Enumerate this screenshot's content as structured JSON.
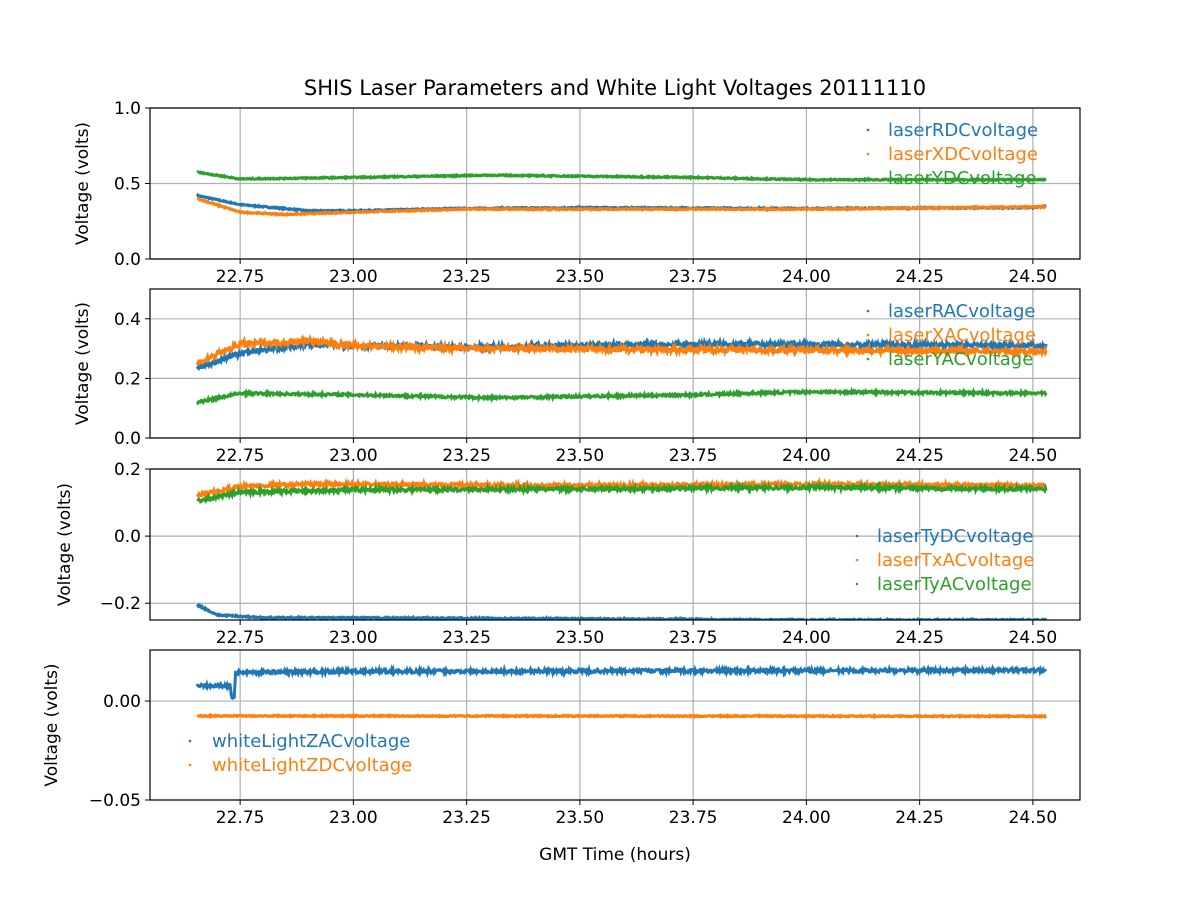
{
  "chart_data": [
    {
      "type": "scatter",
      "title": "SHIS Laser Parameters and White Light Voltages 20111110",
      "ylabel": "Voltage (volts)",
      "xlim": [
        22.551,
        24.604
      ],
      "ylim": [
        0.0,
        1.0
      ],
      "xticks": [
        "22.75",
        "23.00",
        "23.25",
        "23.50",
        "23.75",
        "24.00",
        "24.25",
        "24.50"
      ],
      "yticks": [
        "0.0",
        "0.5",
        "1.0"
      ],
      "grid": true,
      "legend": "top-right",
      "series": [
        {
          "name": "laserRDCvoltage",
          "color": "#1f77b4",
          "noise": 0.004,
          "points": [
            [
              22.655,
              0.42
            ],
            [
              22.75,
              0.36
            ],
            [
              22.9,
              0.32
            ],
            [
              23.0,
              0.32
            ],
            [
              23.25,
              0.335
            ],
            [
              23.5,
              0.34
            ],
            [
              24.0,
              0.335
            ],
            [
              24.5,
              0.34
            ],
            [
              24.53,
              0.35
            ]
          ]
        },
        {
          "name": "laserXDCvoltage",
          "color": "#ff7f0e",
          "noise": 0.004,
          "points": [
            [
              22.655,
              0.4
            ],
            [
              22.75,
              0.31
            ],
            [
              22.85,
              0.295
            ],
            [
              23.0,
              0.31
            ],
            [
              23.25,
              0.33
            ],
            [
              24.0,
              0.33
            ],
            [
              24.53,
              0.345
            ]
          ]
        },
        {
          "name": "laserYDCvoltage",
          "color": "#2ca02c",
          "noise": 0.004,
          "points": [
            [
              22.655,
              0.575
            ],
            [
              22.75,
              0.53
            ],
            [
              23.0,
              0.54
            ],
            [
              23.3,
              0.555
            ],
            [
              23.75,
              0.54
            ],
            [
              24.0,
              0.525
            ],
            [
              24.53,
              0.525
            ]
          ]
        }
      ]
    },
    {
      "type": "scatter",
      "ylabel": "Voltage (volts)",
      "xlim": [
        22.551,
        24.604
      ],
      "ylim": [
        0.0,
        0.5
      ],
      "xticks": [
        "22.75",
        "23.00",
        "23.25",
        "23.50",
        "23.75",
        "24.00",
        "24.25",
        "24.50"
      ],
      "yticks": [
        "0.0",
        "0.2",
        "0.4"
      ],
      "grid": true,
      "legend": "top-right",
      "series": [
        {
          "name": "laserRACvoltage",
          "color": "#1f77b4",
          "noise": 0.009,
          "points": [
            [
              22.655,
              0.235
            ],
            [
              22.75,
              0.285
            ],
            [
              22.9,
              0.315
            ],
            [
              23.0,
              0.31
            ],
            [
              23.25,
              0.305
            ],
            [
              23.75,
              0.315
            ],
            [
              24.53,
              0.31
            ]
          ]
        },
        {
          "name": "laserXACvoltage",
          "color": "#ff7f0e",
          "noise": 0.01,
          "points": [
            [
              22.655,
              0.25
            ],
            [
              22.75,
              0.315
            ],
            [
              22.9,
              0.325
            ],
            [
              23.0,
              0.31
            ],
            [
              23.25,
              0.3
            ],
            [
              24.0,
              0.295
            ],
            [
              24.53,
              0.29
            ]
          ]
        },
        {
          "name": "laserYACvoltage",
          "color": "#2ca02c",
          "noise": 0.004,
          "points": [
            [
              22.655,
              0.12
            ],
            [
              22.75,
              0.15
            ],
            [
              23.0,
              0.145
            ],
            [
              23.3,
              0.135
            ],
            [
              23.75,
              0.145
            ],
            [
              24.0,
              0.155
            ],
            [
              24.53,
              0.15
            ]
          ]
        }
      ]
    },
    {
      "type": "scatter",
      "ylabel": "Voltage (volts)",
      "xlim": [
        22.551,
        24.604
      ],
      "ylim": [
        -0.25,
        0.2
      ],
      "xticks": [
        "22.75",
        "23.00",
        "23.25",
        "23.50",
        "23.75",
        "24.00",
        "24.25",
        "24.50"
      ],
      "yticks": [
        "−0.2",
        "0.0",
        "0.2"
      ],
      "yticks_values": [
        -0.2,
        0.0,
        0.2
      ],
      "grid": true,
      "legend": "center-right",
      "series": [
        {
          "name": "laserTyDCvoltage",
          "color": "#1f77b4",
          "noise": 0.002,
          "points": [
            [
              22.655,
              -0.205
            ],
            [
              22.7,
              -0.235
            ],
            [
              22.8,
              -0.243
            ],
            [
              23.3,
              -0.245
            ],
            [
              24.0,
              -0.25
            ],
            [
              24.53,
              -0.25
            ]
          ]
        },
        {
          "name": "laserTxACvoltage",
          "color": "#ff7f0e",
          "noise": 0.005,
          "points": [
            [
              22.655,
              0.12
            ],
            [
              22.75,
              0.148
            ],
            [
              22.9,
              0.155
            ],
            [
              23.5,
              0.15
            ],
            [
              24.0,
              0.155
            ],
            [
              24.53,
              0.15
            ]
          ]
        },
        {
          "name": "laserTyACvoltage",
          "color": "#2ca02c",
          "noise": 0.005,
          "points": [
            [
              22.655,
              0.105
            ],
            [
              22.75,
              0.13
            ],
            [
              23.0,
              0.138
            ],
            [
              23.5,
              0.14
            ],
            [
              24.0,
              0.145
            ],
            [
              24.53,
              0.14
            ]
          ]
        }
      ]
    },
    {
      "type": "scatter",
      "xlabel": "GMT Time (hours)",
      "ylabel": "Voltage (volts)",
      "xlim": [
        22.551,
        24.604
      ],
      "ylim": [
        -0.05,
        0.0258
      ],
      "xticks": [
        "22.75",
        "23.00",
        "23.25",
        "23.50",
        "23.75",
        "24.00",
        "24.25",
        "24.50"
      ],
      "yticks": [
        "−0.05",
        "0.00"
      ],
      "yticks_values": [
        -0.05,
        0.0
      ],
      "grid": true,
      "legend": "lower-left",
      "series": [
        {
          "name": "whiteLightZACvoltage",
          "color": "#1f77b4",
          "noise": 0.0009,
          "points": [
            [
              22.655,
              0.008
            ],
            [
              22.728,
              0.0078
            ],
            [
              22.731,
              0.002
            ],
            [
              22.737,
              0.002
            ],
            [
              22.74,
              0.0145
            ],
            [
              23.0,
              0.015
            ],
            [
              24.53,
              0.0155
            ]
          ]
        },
        {
          "name": "whiteLightZDCvoltage",
          "color": "#ff7f0e",
          "noise": 0.0003,
          "points": [
            [
              22.655,
              -0.0075
            ],
            [
              24.53,
              -0.0077
            ]
          ]
        }
      ]
    }
  ]
}
